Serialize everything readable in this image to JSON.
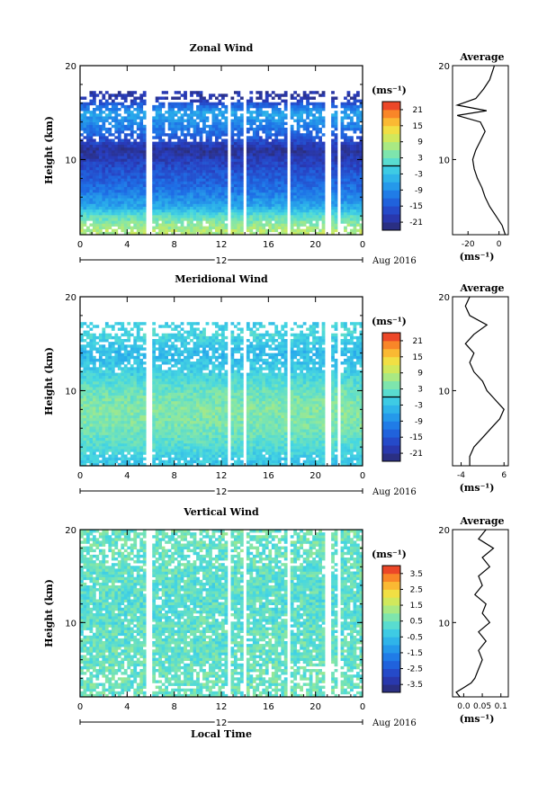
{
  "chart_data": [
    {
      "type": "heatmap",
      "title": "Zonal Wind",
      "ylabel": "Height (km)",
      "ylim": [
        2,
        20
      ],
      "xlim": [
        0,
        24
      ],
      "x_ticks": [
        "0",
        "4",
        "8",
        "12",
        "16",
        "20",
        "0"
      ],
      "y_ticks": [
        "10",
        "20"
      ],
      "date_marker": "12",
      "date_label": "Aug 2016",
      "colorbar": {
        "unit": "(ms⁻¹)",
        "ticks": [
          "21",
          "15",
          "9",
          "3",
          "-3",
          "-9",
          "-15",
          "-21"
        ],
        "range": [
          -24,
          24
        ],
        "zero_line": 0
      },
      "data_gaps_local_time": [
        [
          5.7,
          6.0
        ],
        [
          12.5,
          12.8
        ],
        [
          13.8,
          14.1
        ],
        [
          17.7,
          17.9
        ],
        [
          20.9,
          21.2
        ],
        [
          21.8,
          22.0
        ]
      ],
      "profile_by_height": [
        {
          "height": 2.5,
          "value": 8
        },
        {
          "height": 4,
          "value": 2
        },
        {
          "height": 5,
          "value": -6
        },
        {
          "height": 7,
          "value": -12
        },
        {
          "height": 9,
          "value": -16
        },
        {
          "height": 11,
          "value": -21
        },
        {
          "height": 13,
          "value": -12
        },
        {
          "height": 15,
          "value": -6
        },
        {
          "height": 16.5,
          "value": -20
        }
      ],
      "average_panel": {
        "title": "Average",
        "xlabel": "(ms⁻¹)",
        "x_ticks": [
          "-20",
          "0"
        ],
        "y_ticks": [
          "10",
          "20"
        ],
        "xlim": [
          -30,
          6
        ],
        "ylim": [
          2,
          20
        ],
        "profile": [
          {
            "height": 2.0,
            "value": 4
          },
          {
            "height": 3.0,
            "value": 2
          },
          {
            "height": 4.0,
            "value": -2
          },
          {
            "height": 5.0,
            "value": -6
          },
          {
            "height": 6.0,
            "value": -9
          },
          {
            "height": 7.0,
            "value": -11
          },
          {
            "height": 8.0,
            "value": -14
          },
          {
            "height": 9.0,
            "value": -16
          },
          {
            "height": 10.0,
            "value": -17
          },
          {
            "height": 11.0,
            "value": -15
          },
          {
            "height": 12.0,
            "value": -12
          },
          {
            "height": 13.0,
            "value": -9
          },
          {
            "height": 14.0,
            "value": -12
          },
          {
            "height": 14.7,
            "value": -27
          },
          {
            "height": 15.2,
            "value": -8
          },
          {
            "height": 15.8,
            "value": -27
          },
          {
            "height": 16.5,
            "value": -15
          },
          {
            "height": 17.5,
            "value": -10
          },
          {
            "height": 18.5,
            "value": -6
          },
          {
            "height": 19.5,
            "value": -4
          },
          {
            "height": 20.0,
            "value": -3
          }
        ]
      }
    },
    {
      "type": "heatmap",
      "title": "Meridional Wind",
      "ylabel": "Height (km)",
      "ylim": [
        2,
        20
      ],
      "xlim": [
        0,
        24
      ],
      "x_ticks": [
        "0",
        "4",
        "8",
        "12",
        "16",
        "20",
        "0"
      ],
      "y_ticks": [
        "10",
        "20"
      ],
      "date_marker": "12",
      "date_label": "Aug 2016",
      "colorbar": {
        "unit": "(ms⁻¹)",
        "ticks": [
          "21",
          "15",
          "9",
          "3",
          "-3",
          "-9",
          "-15",
          "-21"
        ],
        "range": [
          -24,
          24
        ],
        "zero_line": 0
      },
      "data_gaps_local_time": [
        [
          5.7,
          6.0
        ],
        [
          12.5,
          12.8
        ],
        [
          13.8,
          14.1
        ],
        [
          17.7,
          17.9
        ],
        [
          20.9,
          21.2
        ],
        [
          21.8,
          22.0
        ]
      ],
      "profile_by_height": [
        {
          "height": 2.5,
          "value": -2
        },
        {
          "height": 4,
          "value": 1
        },
        {
          "height": 6,
          "value": 4
        },
        {
          "height": 8,
          "value": 5
        },
        {
          "height": 10,
          "value": 3
        },
        {
          "height": 12,
          "value": -1
        },
        {
          "height": 14,
          "value": -4
        },
        {
          "height": 16,
          "value": 0
        },
        {
          "height": 18,
          "value": -2
        }
      ],
      "average_panel": {
        "title": "Average",
        "xlabel": "(ms⁻¹)",
        "x_ticks": [
          "-4",
          "6"
        ],
        "y_ticks": [
          "10",
          "20"
        ],
        "xlim": [
          -6,
          7
        ],
        "ylim": [
          2,
          20
        ],
        "profile": [
          {
            "height": 2.0,
            "value": -2
          },
          {
            "height": 3.0,
            "value": -2
          },
          {
            "height": 4.0,
            "value": -1
          },
          {
            "height": 5.0,
            "value": 1
          },
          {
            "height": 6.0,
            "value": 3
          },
          {
            "height": 7.0,
            "value": 5
          },
          {
            "height": 8.0,
            "value": 6
          },
          {
            "height": 9.0,
            "value": 4
          },
          {
            "height": 10.0,
            "value": 2
          },
          {
            "height": 11.0,
            "value": 1
          },
          {
            "height": 12.0,
            "value": -1
          },
          {
            "height": 13.0,
            "value": -2
          },
          {
            "height": 14.0,
            "value": -1
          },
          {
            "height": 15.0,
            "value": -3
          },
          {
            "height": 16.0,
            "value": -1
          },
          {
            "height": 17.0,
            "value": 2
          },
          {
            "height": 18.0,
            "value": -2
          },
          {
            "height": 19.0,
            "value": -3
          },
          {
            "height": 20.0,
            "value": -2
          }
        ]
      }
    },
    {
      "type": "heatmap",
      "title": "Vertical Wind",
      "ylabel": "Height (km)",
      "xlabel": "Local Time",
      "ylim": [
        2,
        20
      ],
      "xlim": [
        0,
        24
      ],
      "x_ticks": [
        "0",
        "4",
        "8",
        "12",
        "16",
        "20",
        "0"
      ],
      "y_ticks": [
        "10",
        "20"
      ],
      "date_marker": "12",
      "date_label": "Aug 2016",
      "colorbar": {
        "unit": "(ms⁻¹)",
        "ticks": [
          "3.5",
          "2.5",
          "1.5",
          "0.5",
          "-0.5",
          "-1.5",
          "-2.5",
          "-3.5"
        ],
        "range": [
          -4,
          4
        ]
      },
      "data_gaps_local_time": [
        [
          5.7,
          6.0
        ],
        [
          12.5,
          12.8
        ],
        [
          13.8,
          14.1
        ],
        [
          17.7,
          17.9
        ],
        [
          20.9,
          21.2
        ],
        [
          21.8,
          22.0
        ]
      ],
      "profile_by_height": [
        {
          "height": 3,
          "value": 0.1
        },
        {
          "height": 8,
          "value": 0.05
        },
        {
          "height": 12,
          "value": 0.0
        },
        {
          "height": 16,
          "value": 0.05
        },
        {
          "height": 19,
          "value": 0.1
        }
      ],
      "average_panel": {
        "title": "Average",
        "xlabel": "(ms⁻¹)",
        "x_ticks": [
          "0.0",
          "0.05",
          "0.1"
        ],
        "y_ticks": [
          "10",
          "20"
        ],
        "xlim": [
          -0.03,
          0.12
        ],
        "ylim": [
          2,
          20
        ],
        "profile": [
          {
            "height": 2.0,
            "value": -0.01
          },
          {
            "height": 2.5,
            "value": -0.02
          },
          {
            "height": 3.0,
            "value": 0.0
          },
          {
            "height": 3.5,
            "value": 0.02
          },
          {
            "height": 4.0,
            "value": 0.03
          },
          {
            "height": 5.0,
            "value": 0.04
          },
          {
            "height": 6.0,
            "value": 0.05
          },
          {
            "height": 7.0,
            "value": 0.04
          },
          {
            "height": 8.0,
            "value": 0.06
          },
          {
            "height": 9.0,
            "value": 0.04
          },
          {
            "height": 10.0,
            "value": 0.07
          },
          {
            "height": 11.0,
            "value": 0.05
          },
          {
            "height": 12.0,
            "value": 0.06
          },
          {
            "height": 13.0,
            "value": 0.03
          },
          {
            "height": 14.0,
            "value": 0.05
          },
          {
            "height": 15.0,
            "value": 0.04
          },
          {
            "height": 16.0,
            "value": 0.07
          },
          {
            "height": 17.0,
            "value": 0.05
          },
          {
            "height": 18.0,
            "value": 0.08
          },
          {
            "height": 19.0,
            "value": 0.04
          },
          {
            "height": 20.0,
            "value": 0.06
          }
        ]
      }
    }
  ]
}
